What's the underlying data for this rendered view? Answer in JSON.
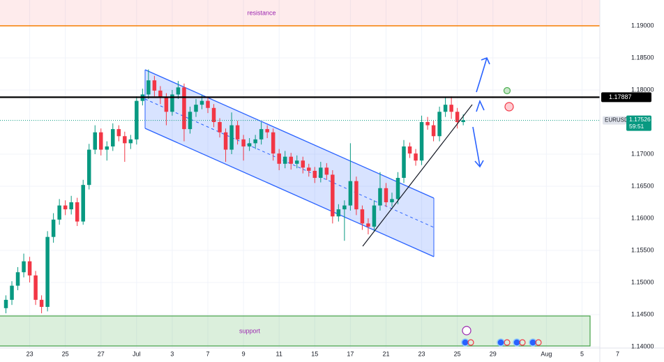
{
  "chart_data": {
    "type": "candlestick",
    "symbol": "EURUSD",
    "last_price": {
      "value": 1.17526,
      "label": "1.17526"
    },
    "countdown": "59:51",
    "level": {
      "value": 1.17887,
      "label": "1.17887"
    },
    "annotations": [
      "resistance",
      "support"
    ],
    "up_color": "#089981",
    "down_color": "#f23645",
    "level_color": "#000000",
    "grid": true,
    "xlim": [
      -2,
      99
    ],
    "ylim": [
      1.13761,
      1.19402
    ],
    "xticks": [
      {
        "value": 3,
        "label": "23"
      },
      {
        "value": 9,
        "label": "25"
      },
      {
        "value": 15,
        "label": "27"
      },
      {
        "value": 21,
        "label": "Jul"
      },
      {
        "value": 27,
        "label": "3"
      },
      {
        "value": 33,
        "label": "7"
      },
      {
        "value": 39,
        "label": "9"
      },
      {
        "value": 45,
        "label": "11"
      },
      {
        "value": 51,
        "label": "15"
      },
      {
        "value": 57,
        "label": "17"
      },
      {
        "value": 63,
        "label": "21"
      },
      {
        "value": 69,
        "label": "23"
      },
      {
        "value": 75,
        "label": "25"
      },
      {
        "value": 81,
        "label": "29"
      },
      {
        "value": 90,
        "label": "Aug"
      },
      {
        "value": 96,
        "label": "5"
      },
      {
        "value": 102,
        "label": "7"
      }
    ],
    "yticks": [
      {
        "value": 1.14,
        "label": "1.14000"
      },
      {
        "value": 1.145,
        "label": "1.14500"
      },
      {
        "value": 1.15,
        "label": "1.15000"
      },
      {
        "value": 1.155,
        "label": "1.15500"
      },
      {
        "value": 1.16,
        "label": "1.16000"
      },
      {
        "value": 1.165,
        "label": "1.16500"
      },
      {
        "value": 1.17,
        "label": "1.17000"
      },
      {
        "value": 1.18,
        "label": "1.18000"
      },
      {
        "value": 1.185,
        "label": "1.18500"
      },
      {
        "value": 1.19,
        "label": "1.19000"
      }
    ],
    "x": [
      -1,
      0,
      1,
      2,
      3,
      4,
      5,
      6,
      7,
      8,
      9,
      10,
      11,
      12,
      13,
      14,
      15,
      16,
      17,
      18,
      19,
      20,
      21,
      22,
      23,
      24,
      25,
      26,
      27,
      28,
      29,
      30,
      31,
      32,
      33,
      34,
      35,
      36,
      37,
      38,
      39,
      40,
      41,
      42,
      43,
      44,
      45,
      46,
      47,
      48,
      49,
      50,
      51,
      52,
      53,
      54,
      55,
      56,
      57,
      58,
      59,
      60,
      61,
      62,
      63,
      64,
      65,
      66,
      67,
      68,
      69,
      70,
      71,
      72,
      73,
      74,
      75,
      76
    ],
    "ohlc": [
      [
        1.146,
        1.148,
        1.1452,
        1.1473
      ],
      [
        1.1473,
        1.1502,
        1.1465,
        1.1495
      ],
      [
        1.1495,
        1.1524,
        1.1488,
        1.1516
      ],
      [
        1.1516,
        1.1545,
        1.1508,
        1.1533
      ],
      [
        1.1533,
        1.154,
        1.15,
        1.1511
      ],
      [
        1.1511,
        1.1518,
        1.1465,
        1.1473
      ],
      [
        1.1473,
        1.148,
        1.1452,
        1.1462
      ],
      [
        1.1462,
        1.158,
        1.1455,
        1.1571
      ],
      [
        1.1571,
        1.1608,
        1.1562,
        1.1598
      ],
      [
        1.1598,
        1.163,
        1.159,
        1.162
      ],
      [
        1.162,
        1.1628,
        1.1605,
        1.1614
      ],
      [
        1.1614,
        1.1635,
        1.1606,
        1.1625
      ],
      [
        1.1625,
        1.1632,
        1.1588,
        1.1595
      ],
      [
        1.1595,
        1.166,
        1.159,
        1.1652
      ],
      [
        1.1652,
        1.1716,
        1.1645,
        1.1707
      ],
      [
        1.1707,
        1.1745,
        1.17,
        1.1734
      ],
      [
        1.1734,
        1.174,
        1.1698,
        1.1707
      ],
      [
        1.1707,
        1.172,
        1.169,
        1.1712
      ],
      [
        1.1712,
        1.1748,
        1.1705,
        1.1739
      ],
      [
        1.1739,
        1.1745,
        1.172,
        1.1728
      ],
      [
        1.1728,
        1.1735,
        1.1688,
        1.1717
      ],
      [
        1.1717,
        1.173,
        1.1708,
        1.1723
      ],
      [
        1.1723,
        1.179,
        1.1715,
        1.1783
      ],
      [
        1.1783,
        1.1802,
        1.1776,
        1.1793
      ],
      [
        1.1793,
        1.1832,
        1.1786,
        1.1815
      ],
      [
        1.1815,
        1.1822,
        1.179,
        1.1799
      ],
      [
        1.1799,
        1.1806,
        1.1778,
        1.1788
      ],
      [
        1.1788,
        1.1795,
        1.1745,
        1.1766
      ],
      [
        1.1766,
        1.18,
        1.176,
        1.1793
      ],
      [
        1.1793,
        1.1814,
        1.1786,
        1.1804
      ],
      [
        1.1804,
        1.181,
        1.172,
        1.1739
      ],
      [
        1.1739,
        1.1774,
        1.1732,
        1.1766
      ],
      [
        1.1766,
        1.1786,
        1.1758,
        1.1777
      ],
      [
        1.1777,
        1.1792,
        1.177,
        1.1783
      ],
      [
        1.1783,
        1.179,
        1.1764,
        1.1772
      ],
      [
        1.1772,
        1.1778,
        1.1742,
        1.175
      ],
      [
        1.175,
        1.1756,
        1.1726,
        1.1734
      ],
      [
        1.1734,
        1.174,
        1.1688,
        1.1707
      ],
      [
        1.1707,
        1.1765,
        1.17,
        1.1745
      ],
      [
        1.1745,
        1.1752,
        1.1715,
        1.1723
      ],
      [
        1.1723,
        1.173,
        1.169,
        1.1712
      ],
      [
        1.1712,
        1.1725,
        1.1705,
        1.1717
      ],
      [
        1.1717,
        1.173,
        1.1708,
        1.1723
      ],
      [
        1.1723,
        1.175,
        1.1715,
        1.1739
      ],
      [
        1.1739,
        1.1745,
        1.1725,
        1.1734
      ],
      [
        1.1734,
        1.174,
        1.169,
        1.1701
      ],
      [
        1.1701,
        1.1708,
        1.1675,
        1.1685
      ],
      [
        1.1685,
        1.1705,
        1.1678,
        1.1696
      ],
      [
        1.1696,
        1.1702,
        1.1676,
        1.1685
      ],
      [
        1.1685,
        1.1698,
        1.1678,
        1.169
      ],
      [
        1.169,
        1.1696,
        1.167,
        1.1679
      ],
      [
        1.1679,
        1.1685,
        1.1665,
        1.1674
      ],
      [
        1.1674,
        1.168,
        1.1655,
        1.1663
      ],
      [
        1.1663,
        1.1688,
        1.1656,
        1.1679
      ],
      [
        1.1679,
        1.1686,
        1.166,
        1.1668
      ],
      [
        1.1668,
        1.1675,
        1.1592,
        1.1603
      ],
      [
        1.1603,
        1.1622,
        1.1595,
        1.1614
      ],
      [
        1.1614,
        1.1628,
        1.1565,
        1.162
      ],
      [
        1.162,
        1.1717,
        1.1612,
        1.1658
      ],
      [
        1.1658,
        1.1665,
        1.1605,
        1.1614
      ],
      [
        1.1614,
        1.162,
        1.1582,
        1.1592
      ],
      [
        1.1592,
        1.16,
        1.1575,
        1.1587
      ],
      [
        1.1587,
        1.1628,
        1.158,
        1.162
      ],
      [
        1.162,
        1.1672,
        1.1612,
        1.1647
      ],
      [
        1.1647,
        1.1655,
        1.1618,
        1.1625
      ],
      [
        1.1625,
        1.164,
        1.1618,
        1.163
      ],
      [
        1.163,
        1.1672,
        1.1622,
        1.1663
      ],
      [
        1.1663,
        1.1722,
        1.1655,
        1.1712
      ],
      [
        1.1712,
        1.1718,
        1.1694,
        1.1701
      ],
      [
        1.1701,
        1.1708,
        1.1682,
        1.169
      ],
      [
        1.169,
        1.176,
        1.1683,
        1.175
      ],
      [
        1.175,
        1.1758,
        1.1738,
        1.1745
      ],
      [
        1.1745,
        1.1752,
        1.172,
        1.1728
      ],
      [
        1.1728,
        1.1774,
        1.172,
        1.1766
      ],
      [
        1.1766,
        1.1788,
        1.1758,
        1.1777
      ],
      [
        1.1777,
        1.179,
        1.1755,
        1.1766
      ],
      [
        1.1766,
        1.1772,
        1.174,
        1.175
      ],
      [
        1.175,
        1.1762,
        1.1745,
        1.1753
      ]
    ]
  }
}
